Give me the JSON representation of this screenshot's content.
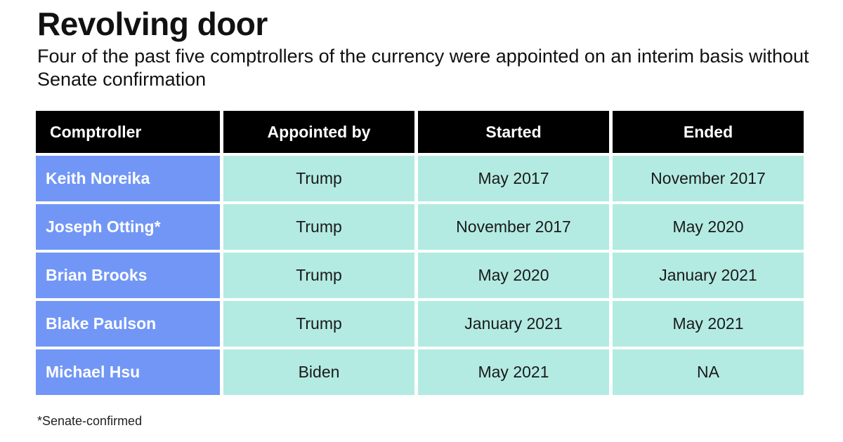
{
  "title": "Revolving door",
  "subtitle": "Four of the past five comptrollers of the currency were appointed on an interim basis without Senate confirmation",
  "footnote": "*Senate-confirmed",
  "colors": {
    "header_bg": "#000000",
    "name_bg": "#7196f6",
    "cell_bg": "#b3ebe2"
  },
  "chart_data": {
    "type": "table",
    "title": "Revolving door",
    "columns": [
      "Comptroller",
      "Appointed by",
      "Started",
      "Ended"
    ],
    "rows": [
      [
        "Keith Noreika",
        "Trump",
        "May 2017",
        "November 2017"
      ],
      [
        "Joseph Otting*",
        "Trump",
        "November 2017",
        "May 2020"
      ],
      [
        "Brian Brooks",
        "Trump",
        "May 2020",
        "January 2021"
      ],
      [
        "Blake Paulson",
        "Trump",
        "January 2021",
        "May 2021"
      ],
      [
        "Michael Hsu",
        "Biden",
        "May 2021",
        "NA"
      ]
    ]
  }
}
